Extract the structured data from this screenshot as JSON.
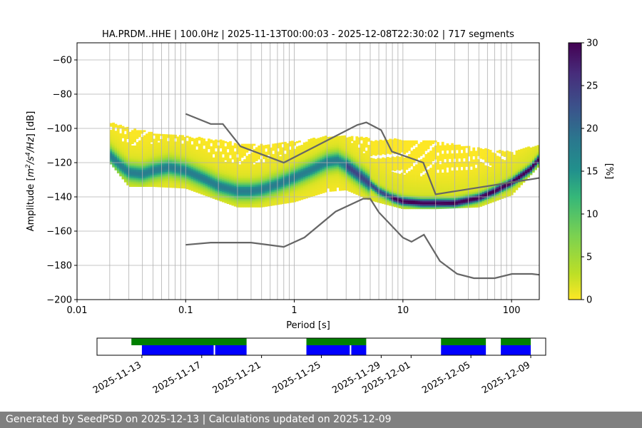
{
  "chart_data": {
    "type": "heatmap",
    "title": "HA.PRDM..HHE | 100.0Hz | 2025-11-13T00:00:03 - 2025-12-08T22:30:02 | 717 segments",
    "xlabel": "Period [s]",
    "ylabel": "Amplitude [$m^2/s^4/Hz$] [dB]",
    "x_scale": "log",
    "xlim": [
      0.01,
      180
    ],
    "ylim": [
      -200,
      -50
    ],
    "x_ticks": [
      "0.01",
      "0.1",
      "1",
      "10",
      "100"
    ],
    "y_ticks": [
      "−200",
      "−180",
      "−160",
      "−140",
      "−120",
      "−100",
      "−80",
      "−60"
    ],
    "grid": true,
    "colorbar": {
      "label": "[%]",
      "range": [
        0,
        30
      ],
      "ticks": [
        "0",
        "5",
        "10",
        "15",
        "20",
        "25",
        "30"
      ],
      "colormap": "viridis_r"
    },
    "mode_curve": {
      "x": [
        0.02,
        0.025,
        0.03,
        0.04,
        0.05,
        0.07,
        0.1,
        0.15,
        0.2,
        0.3,
        0.4,
        0.5,
        0.7,
        1,
        1.5,
        2,
        2.5,
        3,
        4,
        5,
        6,
        8,
        10,
        15,
        20,
        30,
        50,
        70,
        100,
        150,
        180
      ],
      "y": [
        -116,
        -122,
        -126,
        -127,
        -125,
        -123,
        -125,
        -130,
        -134,
        -137,
        -137,
        -136,
        -133,
        -129,
        -124,
        -120,
        -119,
        -122,
        -128,
        -133,
        -137,
        -141,
        -143,
        -144,
        -144,
        -144,
        -141,
        -137,
        -132,
        -124,
        -118
      ]
    },
    "density_spread": {
      "x": [
        0.02,
        0.03,
        0.05,
        0.1,
        0.2,
        0.3,
        0.5,
        1,
        2,
        3,
        5,
        10,
        20,
        50,
        100,
        180
      ],
      "upper": [
        -97,
        -100,
        -103,
        -105,
        -107,
        -109,
        -110,
        -108,
        -105,
        -105,
        -106,
        -107,
        -108,
        -112,
        -114,
        -110
      ],
      "lower": [
        -120,
        -134,
        -134,
        -135,
        -142,
        -146,
        -146,
        -143,
        -137,
        -136,
        -142,
        -147,
        -147,
        -146,
        -139,
        -122
      ]
    },
    "noise_models": [
      {
        "x": [
          0.1,
          0.17,
          0.22,
          0.32,
          0.8,
          3.8,
          4.6,
          6.3,
          7.9,
          15.4,
          20,
          354.8
        ],
        "y": [
          -91.5,
          -97.4,
          -97.4,
          -110.5,
          -120,
          -98,
          -96.5,
          -101,
          -113.5,
          -120,
          -138.5,
          -126
        ]
      },
      {
        "x": [
          0.1,
          0.17,
          0.4,
          0.8,
          1.24,
          2.4,
          4.3,
          5,
          6,
          10,
          12,
          15.6,
          21.9,
          31.6,
          45,
          70,
          101,
          154,
          180
        ],
        "y": [
          -168,
          -166.7,
          -166.7,
          -169.2,
          -163.7,
          -148.6,
          -141.1,
          -141.1,
          -149,
          -163.8,
          -166.2,
          -162.1,
          -177.5,
          -185,
          -187.5,
          -187.5,
          -185,
          -185,
          -185.5
        ]
      }
    ],
    "timeline": {
      "date_ticks": [
        "2025-11-13",
        "2025-11-17",
        "2025-11-21",
        "2025-11-25",
        "2025-11-29",
        "2025-12-01",
        "2025-12-05",
        "2025-12-09"
      ],
      "date_range": [
        "2025-11-10",
        "2025-12-10"
      ],
      "available": [
        [
          "2025-11-12.3",
          "2025-11-20"
        ],
        [
          "2025-11-24",
          "2025-11-28"
        ],
        [
          "2025-12-03",
          "2025-12-06"
        ],
        [
          "2025-12-07",
          "2025-12-09"
        ]
      ],
      "used": [
        [
          "2025-11-13",
          "2025-11-17.8"
        ],
        [
          "2025-11-17.9",
          "2025-11-20"
        ],
        [
          "2025-11-24",
          "2025-11-26.9"
        ],
        [
          "2025-11-27",
          "2025-11-28"
        ],
        [
          "2025-12-03",
          "2025-12-06"
        ],
        [
          "2025-12-07",
          "2025-12-09"
        ]
      ],
      "colors": {
        "available": "#008000",
        "used": "#0000ff"
      }
    }
  },
  "footer": {
    "text": "Generated by SeedPSD on 2025-12-13 | Calculations updated on 2025-12-09"
  }
}
